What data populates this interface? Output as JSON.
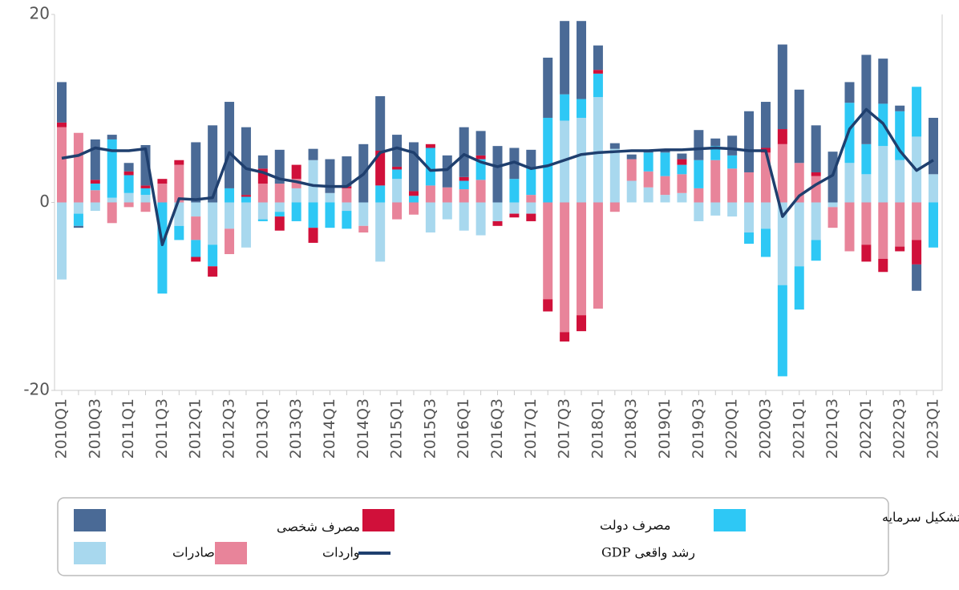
{
  "chart_data": {
    "type": "bar",
    "stacked": true,
    "categories": [
      "2010Q1",
      null,
      "2010Q3",
      null,
      "2011Q1",
      null,
      "2011Q3",
      null,
      "2012Q1",
      null,
      "2012Q3",
      null,
      "2013Q1",
      null,
      "2013Q3",
      null,
      "2014Q1",
      null,
      "2014Q3",
      null,
      "2015Q1",
      null,
      "2015Q3",
      null,
      "2016Q1",
      null,
      "2016Q3",
      null,
      "2017Q1",
      null,
      "2017Q3",
      null,
      "2018Q1",
      null,
      "2018Q3",
      null,
      "2019Q1",
      null,
      "2019Q3",
      null,
      "2020Q1",
      null,
      "2020Q3",
      null,
      "2021Q1",
      null,
      "2021Q3",
      null,
      "2022Q1",
      null,
      "2022Q3",
      null,
      "2023Q1"
    ],
    "series": [
      {
        "name": "مصرف شخصی",
        "color": "#4a6a96",
        "values": [
          4.3,
          -0.2,
          4.3,
          0.5,
          0.9,
          4.3,
          0,
          0,
          6.4,
          8.2,
          9.2,
          7.2,
          1.4,
          3.6,
          0,
          1.2,
          3.6,
          3.2,
          6.2,
          5.8,
          3.4,
          5.2,
          0,
          3.4,
          5.3,
          2.6,
          6,
          3.3,
          2,
          6.4,
          7.8,
          8.3,
          2.6,
          0.6,
          0.5,
          0.2,
          0.3,
          0.6,
          3.2,
          0.8,
          2.1,
          6.5,
          4.9,
          9,
          7.8,
          5,
          5.4,
          2.2,
          9.5,
          4.8,
          0.6,
          -2.8,
          6
        ]
      },
      {
        "name": "مصرف دولت",
        "color": "#d0103a",
        "values": [
          0.5,
          0,
          0.4,
          0,
          0.4,
          0.3,
          0.5,
          0.5,
          -0.5,
          -1.1,
          0,
          0.2,
          1.6,
          -1.5,
          1.5,
          -1.6,
          0,
          0.2,
          0,
          3.7,
          0.3,
          0.5,
          0.4,
          0,
          0.4,
          0.4,
          -0.5,
          -0.4,
          -0.8,
          -1.3,
          -1,
          -1.7,
          0.4,
          0,
          0,
          0,
          0,
          0.6,
          0,
          0,
          0,
          0,
          0.5,
          1.6,
          0,
          0.4,
          0,
          0,
          -1.8,
          -1.4,
          -0.5,
          -2.6,
          0
        ]
      },
      {
        "name": "تشکیل سرمایه",
        "color": "#2ec8f5",
        "values": [
          0,
          -1.3,
          0.7,
          6.2,
          1.9,
          0.7,
          -9.7,
          -1.5,
          -1.8,
          -2.3,
          1.5,
          0.6,
          -0.2,
          -0.5,
          -2,
          -2.7,
          -2.7,
          -1.9,
          0,
          1.8,
          1,
          0.7,
          4,
          0,
          0.9,
          2.2,
          0,
          2.5,
          2.8,
          9,
          2.8,
          2,
          2.5,
          0,
          0,
          2,
          2.5,
          1,
          3,
          1.5,
          1.4,
          -1.2,
          -3,
          -9.7,
          -4.6,
          -2.2,
          0,
          6.4,
          3.2,
          4.5,
          5.2,
          5.3,
          -4.8
        ]
      },
      {
        "name": "صادرات",
        "color": "#a8d8ee",
        "values": [
          -8.2,
          -1.2,
          -0.9,
          0.5,
          1,
          0.8,
          0,
          -2.5,
          -1.5,
          -4.5,
          -2.8,
          -4.8,
          -1.8,
          -1,
          1.5,
          4.5,
          1,
          -0.9,
          -2.5,
          -6.3,
          2.5,
          0,
          -3.2,
          -1.8,
          -3,
          -3.5,
          -2,
          -1.2,
          -1.2,
          0,
          8.7,
          9,
          11.2,
          5.7,
          2.3,
          1.6,
          0.8,
          1,
          -2,
          -1.4,
          -1.5,
          -3.2,
          -2.8,
          -8.8,
          -6.8,
          -4,
          -0.5,
          4.2,
          3,
          6,
          4.5,
          7,
          3
        ]
      },
      {
        "name": "واردات",
        "color": "#e8849a",
        "values": [
          8,
          7.4,
          1.3,
          -2.2,
          -0.5,
          -1,
          2,
          4,
          -2.5,
          0,
          -2.7,
          0,
          2,
          2,
          1,
          0,
          0,
          1.5,
          -0.7,
          0,
          -1.8,
          -1.3,
          1.8,
          1.6,
          1.4,
          2.4,
          0,
          0,
          0.8,
          -10.3,
          -13.8,
          -12,
          -11.3,
          -1,
          2.3,
          1.7,
          2,
          2,
          1.5,
          4.5,
          3.6,
          3.2,
          5.3,
          6.2,
          4.2,
          2.8,
          -2.2,
          -5.2,
          -4.5,
          -6,
          -4.7,
          -4,
          0
        ]
      },
      {
        "name": "رشد واقعی GDP",
        "color": "#1f3f6e",
        "type": "line",
        "values": [
          4.7,
          5,
          5.8,
          5.5,
          5.5,
          5.7,
          -4.5,
          0.4,
          0.3,
          0.5,
          5.3,
          3.6,
          3.2,
          2.5,
          2.2,
          1.8,
          1.7,
          1.7,
          3,
          5.3,
          5.8,
          5.3,
          3.4,
          3.5,
          5.1,
          4.3,
          3.8,
          4.3,
          3.6,
          3.9,
          4.5,
          5.1,
          5.3,
          5.4,
          5.5,
          5.5,
          5.6,
          5.6,
          5.7,
          5.8,
          5.7,
          5.5,
          5.5,
          -1.5,
          0.7,
          1.9,
          2.9,
          7.8,
          9.9,
          8.4,
          5.5,
          3.4,
          4.5
        ]
      }
    ],
    "ylim": [
      -20,
      20
    ],
    "yticks": [
      -20,
      0,
      20
    ],
    "grid": false
  }
}
